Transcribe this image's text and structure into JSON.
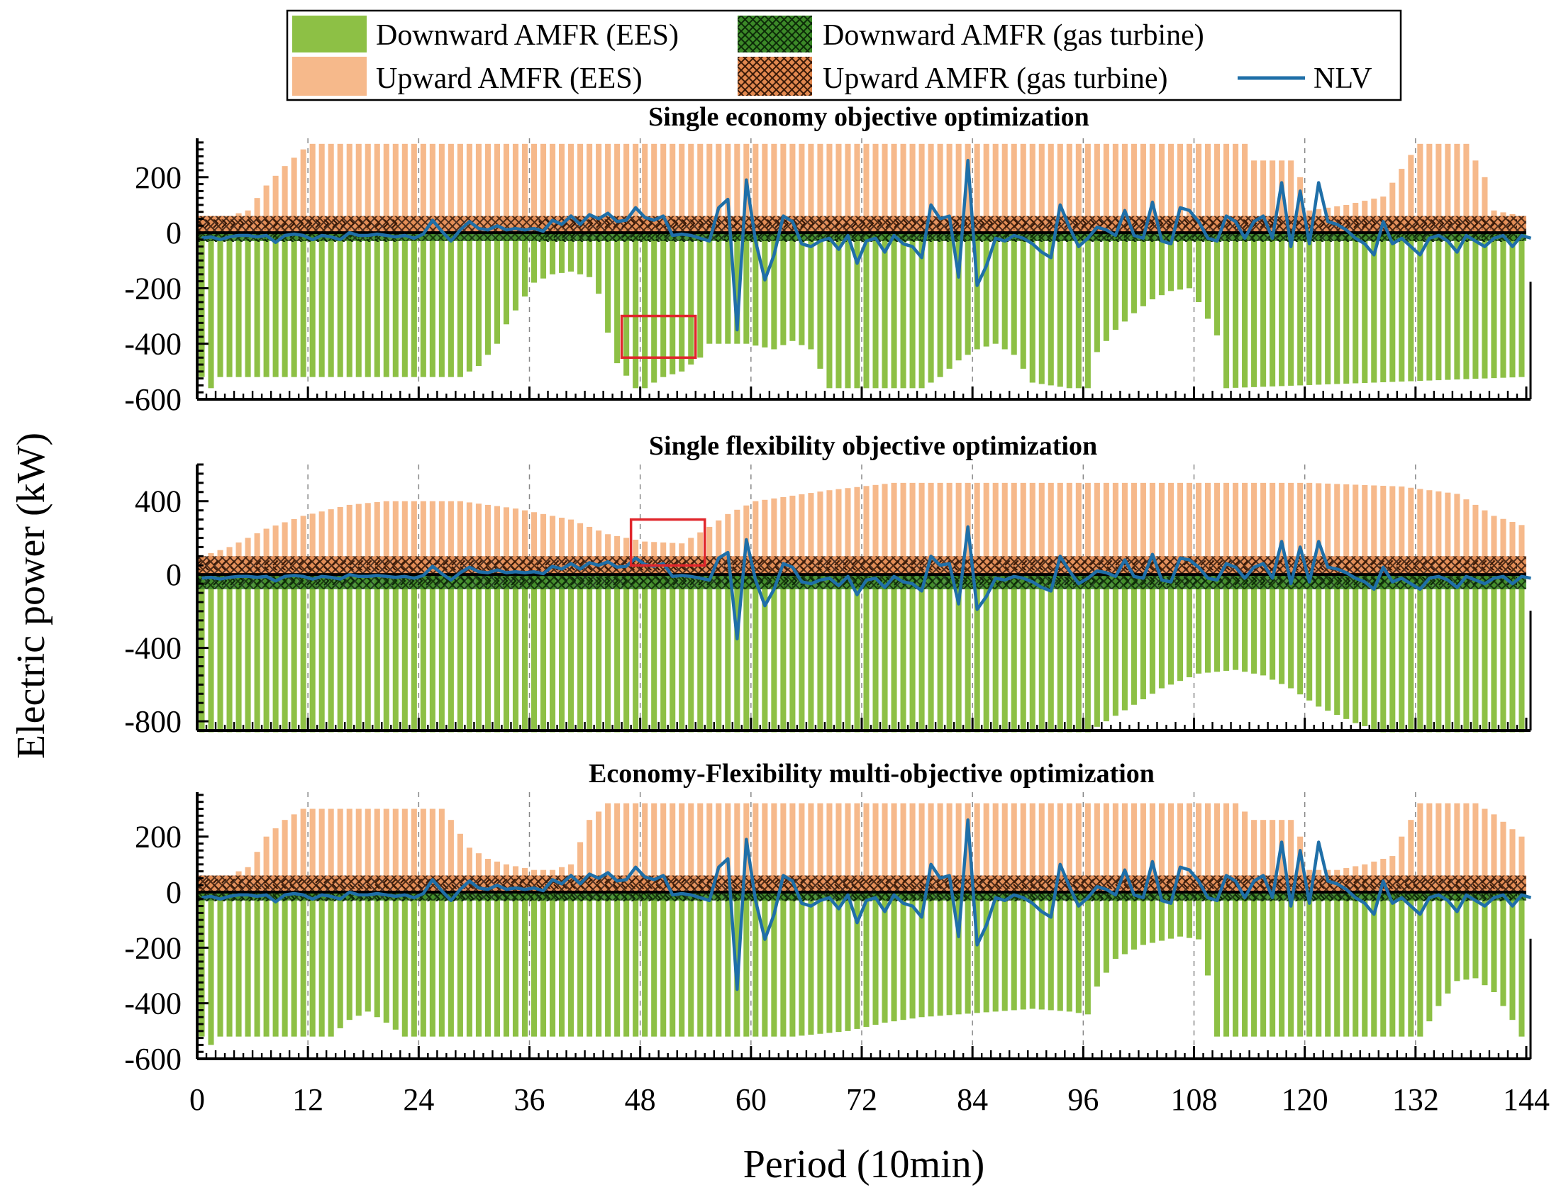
{
  "chart_data": {
    "type": "bar",
    "xlabel": "Period (10min)",
    "ylabel": "Electric power (kW)",
    "xlim": [
      0,
      144
    ],
    "xticks": [
      0,
      12,
      24,
      36,
      48,
      60,
      72,
      84,
      96,
      108,
      120,
      132,
      144
    ],
    "xtick_labels": [
      "0",
      "12",
      "24",
      "36",
      "48",
      "60",
      "72",
      "84",
      "96",
      "108",
      "120",
      "132",
      "144"
    ],
    "legend": {
      "placement": "top-center",
      "entries": [
        {
          "label": "Downward AMFR (EES)",
          "color": "#8DC045",
          "kind": "bar"
        },
        {
          "label": "Downward AMFR (gas turbine)",
          "color": "#3C8A28",
          "kind": "hatch-cross"
        },
        {
          "label": "Upward AMFR (EES)",
          "color": "#F6B98B",
          "kind": "bar"
        },
        {
          "label": "Upward AMFR (gas turbine)",
          "color": "#E2884F",
          "kind": "hatch-cross"
        },
        {
          "label": "NLV",
          "color": "#1F6FA8",
          "kind": "line"
        }
      ]
    },
    "nlv_period_step": 1,
    "nlv": [
      -20,
      -15,
      -25,
      -15,
      -10,
      -10,
      -15,
      -10,
      -35,
      -10,
      -5,
      -10,
      -25,
      -10,
      -15,
      -25,
      0,
      -10,
      -10,
      -5,
      -10,
      -15,
      -10,
      -20,
      -5,
      45,
      5,
      -30,
      10,
      40,
      15,
      10,
      25,
      10,
      15,
      10,
      15,
      5,
      45,
      30,
      60,
      30,
      65,
      50,
      70,
      40,
      45,
      90,
      55,
      45,
      60,
      -10,
      -5,
      -10,
      -20,
      -30,
      90,
      120,
      -350,
      190,
      -30,
      -170,
      -80,
      60,
      40,
      -40,
      -50,
      -30,
      -20,
      -60,
      -10,
      -110,
      -30,
      -20,
      -70,
      -10,
      -40,
      -50,
      -90,
      100,
      50,
      60,
      -160,
      260,
      -190,
      -120,
      -20,
      -30,
      -10,
      -20,
      -40,
      -70,
      -90,
      100,
      20,
      -50,
      -20,
      20,
      10,
      -10,
      80,
      -10,
      -20,
      110,
      -30,
      -40,
      90,
      80,
      40,
      -20,
      -30,
      60,
      40,
      -20,
      40,
      60,
      -20,
      180,
      -50,
      150,
      -40,
      180,
      40,
      30,
      10,
      -20,
      -40,
      -80,
      40,
      -40,
      -20,
      -50,
      -80,
      -20,
      -10,
      -30,
      -70,
      -10,
      -30,
      -50,
      -20,
      -10,
      -50,
      -10,
      -20
    ],
    "panels": [
      {
        "title": "Single economy objective optimization",
        "ylim": [
          -600,
          340
        ],
        "yticks": [
          -600,
          -400,
          -200,
          0,
          200
        ],
        "ytick_labels": [
          "-600",
          "-400",
          "-200",
          "0",
          "200"
        ],
        "ees_up_anchors": [
          [
            0,
            60
          ],
          [
            3,
            60
          ],
          [
            5,
            80
          ],
          [
            7,
            170
          ],
          [
            9,
            240
          ],
          [
            11,
            300
          ],
          [
            12,
            320
          ],
          [
            113,
            320
          ],
          [
            114,
            260
          ],
          [
            118,
            260
          ],
          [
            119,
            200
          ],
          [
            120,
            80
          ],
          [
            124,
            100
          ],
          [
            128,
            130
          ],
          [
            129,
            180
          ],
          [
            131,
            280
          ],
          [
            132,
            320
          ],
          [
            137,
            320
          ],
          [
            139,
            200
          ],
          [
            140,
            80
          ],
          [
            143,
            60
          ]
        ],
        "ees_down_anchors": [
          [
            0,
            -520
          ],
          [
            1,
            -560
          ],
          [
            2,
            -520
          ],
          [
            28,
            -520
          ],
          [
            30,
            -480
          ],
          [
            32,
            -400
          ],
          [
            33,
            -330
          ],
          [
            35,
            -230
          ],
          [
            36,
            -180
          ],
          [
            38,
            -150
          ],
          [
            40,
            -140
          ],
          [
            42,
            -160
          ],
          [
            43,
            -220
          ],
          [
            44,
            -360
          ],
          [
            45,
            -470
          ],
          [
            47,
            -560
          ],
          [
            48,
            -560
          ],
          [
            50,
            -520
          ],
          [
            52,
            -500
          ],
          [
            54,
            -450
          ],
          [
            55,
            -400
          ],
          [
            59,
            -400
          ],
          [
            62,
            -420
          ],
          [
            64,
            -390
          ],
          [
            66,
            -420
          ],
          [
            68,
            -560
          ],
          [
            78,
            -560
          ],
          [
            80,
            -520
          ],
          [
            82,
            -460
          ],
          [
            84,
            -420
          ],
          [
            86,
            -400
          ],
          [
            88,
            -440
          ],
          [
            90,
            -540
          ],
          [
            94,
            -560
          ],
          [
            96,
            -560
          ],
          [
            97,
            -430
          ],
          [
            99,
            -350
          ],
          [
            101,
            -290
          ],
          [
            103,
            -240
          ],
          [
            105,
            -210
          ],
          [
            107,
            -200
          ],
          [
            108,
            -250
          ],
          [
            109,
            -310
          ],
          [
            110,
            -370
          ],
          [
            111,
            -560
          ],
          [
            143,
            -520
          ]
        ],
        "gt_up_anchors": [
          [
            0,
            60
          ],
          [
            143,
            60
          ]
        ],
        "gt_down_anchors": [
          [
            0,
            -30
          ],
          [
            143,
            -30
          ]
        ],
        "gt_line_segments": [
          [
            0,
            22
          ],
          [
            37,
            143
          ]
        ],
        "highlight_box": {
          "x": [
            46,
            54
          ],
          "y": [
            -450,
            -300
          ]
        }
      },
      {
        "title": "Single flexibility objective optimization",
        "ylim": [
          -850,
          600
        ],
        "yticks": [
          -800,
          -400,
          0,
          400
        ],
        "ytick_labels": [
          "-800",
          "-400",
          "0",
          "400"
        ],
        "ees_up_anchors": [
          [
            0,
            100
          ],
          [
            3,
            150
          ],
          [
            7,
            250
          ],
          [
            11,
            320
          ],
          [
            16,
            380
          ],
          [
            20,
            400
          ],
          [
            28,
            400
          ],
          [
            34,
            360
          ],
          [
            40,
            300
          ],
          [
            44,
            220
          ],
          [
            48,
            180
          ],
          [
            52,
            170
          ],
          [
            55,
            260
          ],
          [
            57,
            330
          ],
          [
            60,
            400
          ],
          [
            64,
            430
          ],
          [
            68,
            460
          ],
          [
            75,
            500
          ],
          [
            112,
            500
          ],
          [
            120,
            500
          ],
          [
            130,
            480
          ],
          [
            136,
            440
          ],
          [
            140,
            320
          ],
          [
            143,
            270
          ]
        ],
        "ees_down_anchors": [
          [
            0,
            -860
          ],
          [
            96,
            -860
          ],
          [
            100,
            -740
          ],
          [
            104,
            -620
          ],
          [
            108,
            -540
          ],
          [
            112,
            -520
          ],
          [
            115,
            -550
          ],
          [
            118,
            -620
          ],
          [
            121,
            -720
          ],
          [
            125,
            -810
          ],
          [
            128,
            -860
          ],
          [
            143,
            -860
          ]
        ],
        "gt_up_anchors": [
          [
            0,
            100
          ],
          [
            143,
            100
          ]
        ],
        "gt_down_anchors": [
          [
            0,
            -80
          ],
          [
            143,
            -80
          ]
        ],
        "gt_line_segments": [
          [
            0,
            143
          ]
        ],
        "highlight_box": {
          "x": [
            47,
            55
          ],
          "y": [
            50,
            300
          ]
        }
      },
      {
        "title": "Economy-Flexibility multi-objective optimization",
        "ylim": [
          -600,
          360
        ],
        "yticks": [
          -600,
          -400,
          -200,
          0,
          200
        ],
        "ytick_labels": [
          "-600",
          "-400",
          "-200",
          "0",
          "200"
        ],
        "ees_up_anchors": [
          [
            0,
            60
          ],
          [
            3,
            60
          ],
          [
            5,
            90
          ],
          [
            7,
            200
          ],
          [
            9,
            260
          ],
          [
            11,
            300
          ],
          [
            13,
            300
          ],
          [
            26,
            300
          ],
          [
            27,
            260
          ],
          [
            29,
            160
          ],
          [
            31,
            120
          ],
          [
            33,
            100
          ],
          [
            36,
            80
          ],
          [
            38,
            80
          ],
          [
            40,
            100
          ],
          [
            41,
            180
          ],
          [
            42,
            260
          ],
          [
            44,
            320
          ],
          [
            112,
            320
          ],
          [
            114,
            260
          ],
          [
            118,
            260
          ],
          [
            119,
            200
          ],
          [
            120,
            80
          ],
          [
            123,
            80
          ],
          [
            126,
            100
          ],
          [
            129,
            130
          ],
          [
            130,
            200
          ],
          [
            132,
            320
          ],
          [
            138,
            320
          ],
          [
            140,
            280
          ],
          [
            143,
            200
          ]
        ],
        "ees_down_anchors": [
          [
            0,
            -520
          ],
          [
            1,
            -550
          ],
          [
            2,
            -520
          ],
          [
            14,
            -520
          ],
          [
            16,
            -460
          ],
          [
            18,
            -430
          ],
          [
            20,
            -470
          ],
          [
            22,
            -520
          ],
          [
            64,
            -520
          ],
          [
            70,
            -500
          ],
          [
            74,
            -470
          ],
          [
            78,
            -450
          ],
          [
            82,
            -440
          ],
          [
            86,
            -430
          ],
          [
            90,
            -420
          ],
          [
            94,
            -430
          ],
          [
            96,
            -440
          ],
          [
            97,
            -340
          ],
          [
            99,
            -240
          ],
          [
            102,
            -190
          ],
          [
            106,
            -160
          ],
          [
            108,
            -170
          ],
          [
            109,
            -300
          ],
          [
            110,
            -520
          ],
          [
            132,
            -520
          ],
          [
            134,
            -410
          ],
          [
            136,
            -320
          ],
          [
            138,
            -310
          ],
          [
            140,
            -360
          ],
          [
            142,
            -460
          ],
          [
            143,
            -520
          ]
        ],
        "gt_up_anchors": [
          [
            0,
            60
          ],
          [
            143,
            60
          ]
        ],
        "gt_down_anchors": [
          [
            0,
            -30
          ],
          [
            143,
            -30
          ]
        ],
        "gt_line_segments": [
          [
            0,
            143
          ]
        ],
        "highlight_box": null
      }
    ]
  },
  "colors": {
    "ees_down": "#8DC045",
    "ees_up": "#F6B98B",
    "gt_down": "#3C8A28",
    "gt_up": "#E2884F",
    "nlv": "#1F6FA8",
    "highlight": "#E0262B"
  }
}
